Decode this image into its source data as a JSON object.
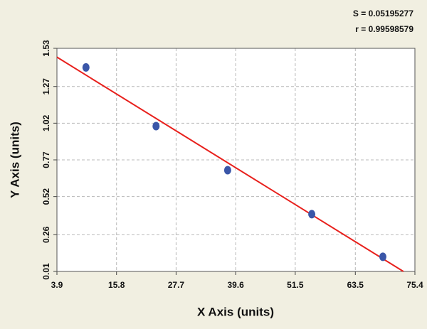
{
  "chart_data": {
    "type": "scatter",
    "x_label": "X Axis (units)",
    "y_label": "Y Axis (units)",
    "annotations": [
      "S = 0.05195277",
      "r = 0.99598579"
    ],
    "x": [
      9.7,
      23.7,
      38.0,
      54.8,
      69.0
    ],
    "values": [
      1.4,
      1.0,
      0.7,
      0.4,
      0.11
    ],
    "color": "#3a56a8",
    "fit_line": {
      "x": [
        3.9,
        73.1
      ],
      "values": [
        1.47,
        0.01
      ],
      "color": "#e8201c"
    },
    "xlim": [
      3.9,
      75.4
    ],
    "xticks": [
      3.9,
      15.8,
      27.7,
      39.6,
      51.5,
      63.5,
      75.4
    ],
    "ylim": [
      0.01,
      1.53
    ],
    "yticks": [
      0.01,
      0.26,
      0.52,
      0.77,
      1.02,
      1.27,
      1.53
    ],
    "grid": true
  }
}
